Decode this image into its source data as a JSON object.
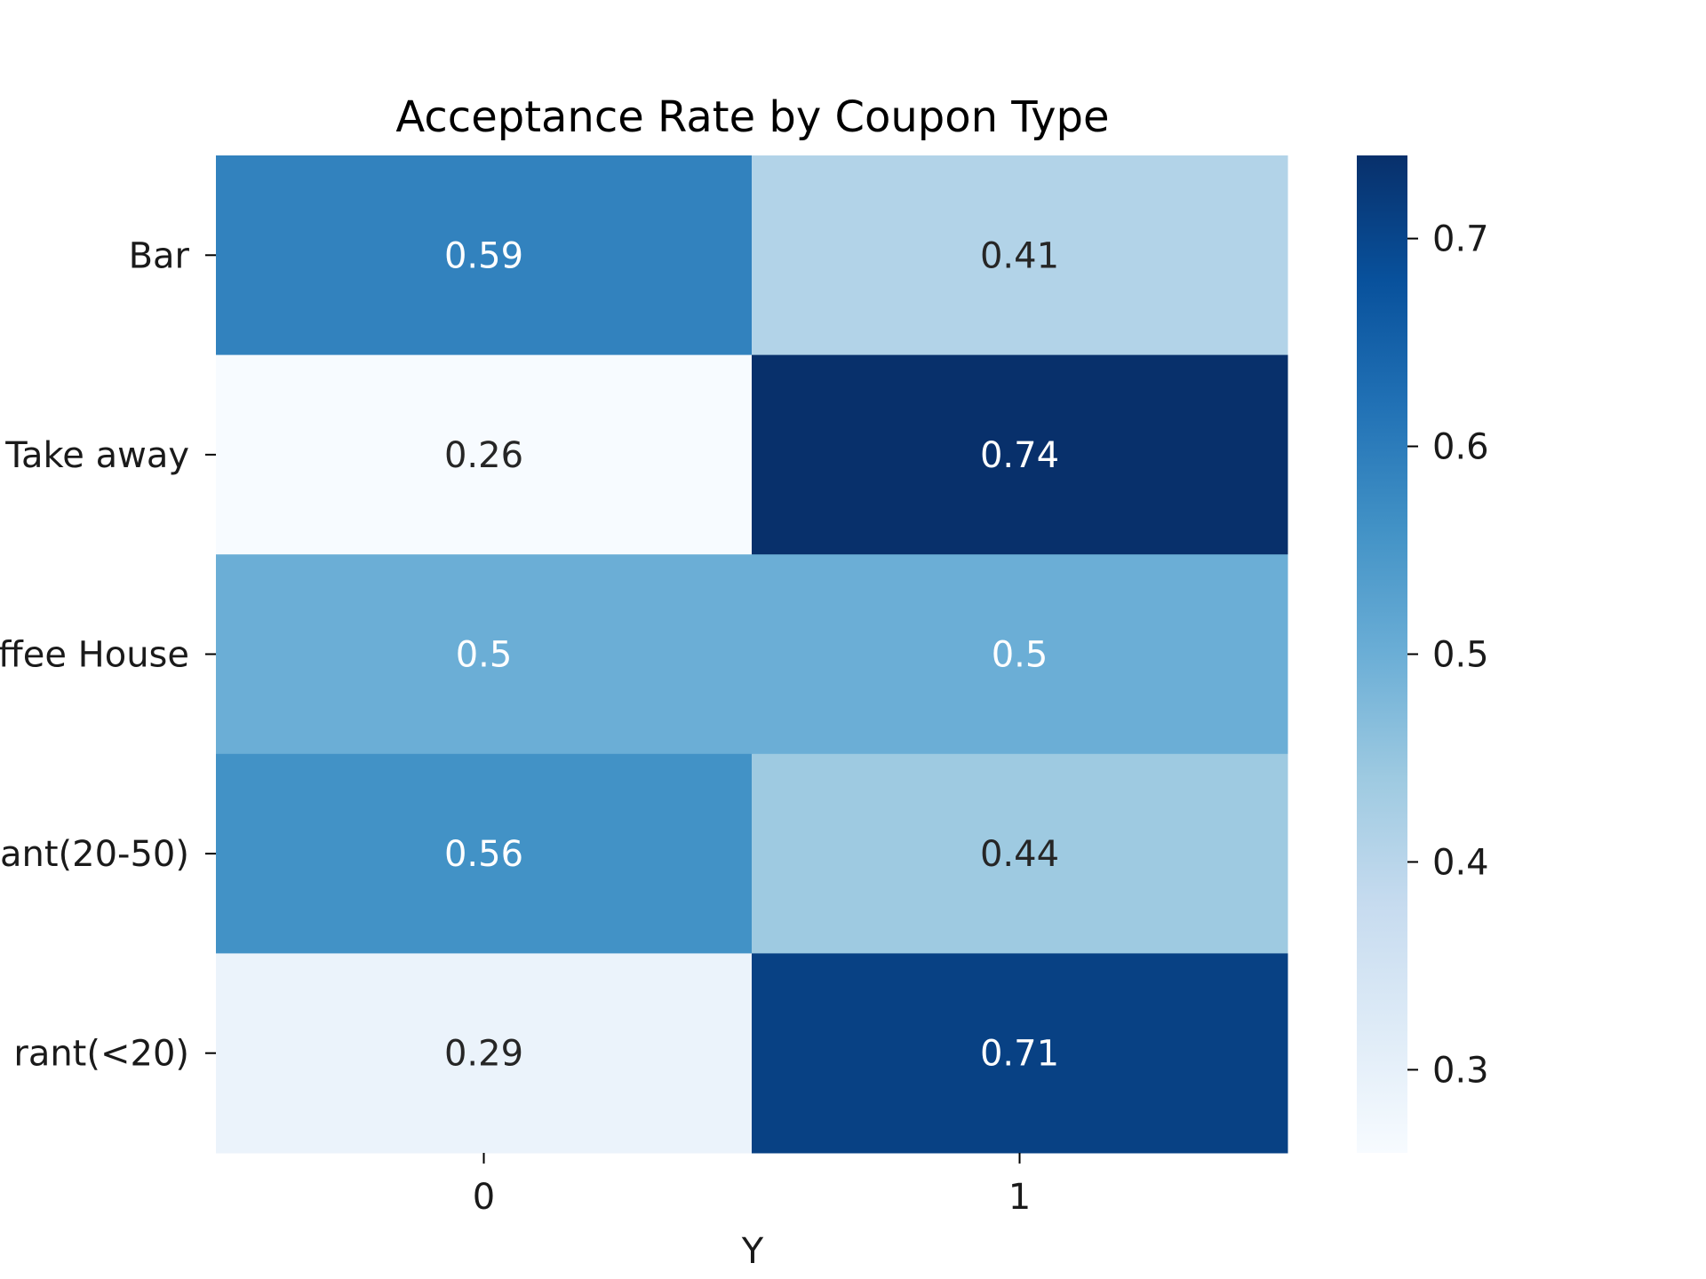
{
  "chart_data": {
    "type": "heatmap",
    "title": "Acceptance Rate by Coupon Type",
    "xlabel": "Y",
    "ylabel": "",
    "x_categories": [
      "0",
      "1"
    ],
    "y_labels_visible": [
      "Bar",
      "Take away",
      "ffee House",
      "ant(20-50)",
      "rant(<20)"
    ],
    "values": [
      [
        0.59,
        0.41
      ],
      [
        0.26,
        0.74
      ],
      [
        0.5,
        0.5
      ],
      [
        0.56,
        0.44
      ],
      [
        0.29,
        0.71
      ]
    ],
    "cell_labels": [
      [
        "0.59",
        "0.41"
      ],
      [
        "0.26",
        "0.74"
      ],
      [
        "0.5",
        "0.5"
      ],
      [
        "0.56",
        "0.44"
      ],
      [
        "0.29",
        "0.71"
      ]
    ],
    "colorbar": {
      "colormap": "Blues",
      "range": [
        0.26,
        0.74
      ],
      "ticks": [
        0.3,
        0.4,
        0.5,
        0.6,
        0.7
      ],
      "tick_labels": [
        "0.3",
        "0.4",
        "0.5",
        "0.6",
        "0.7"
      ]
    },
    "colors": {
      "light_text": "#ffffff",
      "dark_text": "#262626",
      "axis": "#000000"
    }
  }
}
